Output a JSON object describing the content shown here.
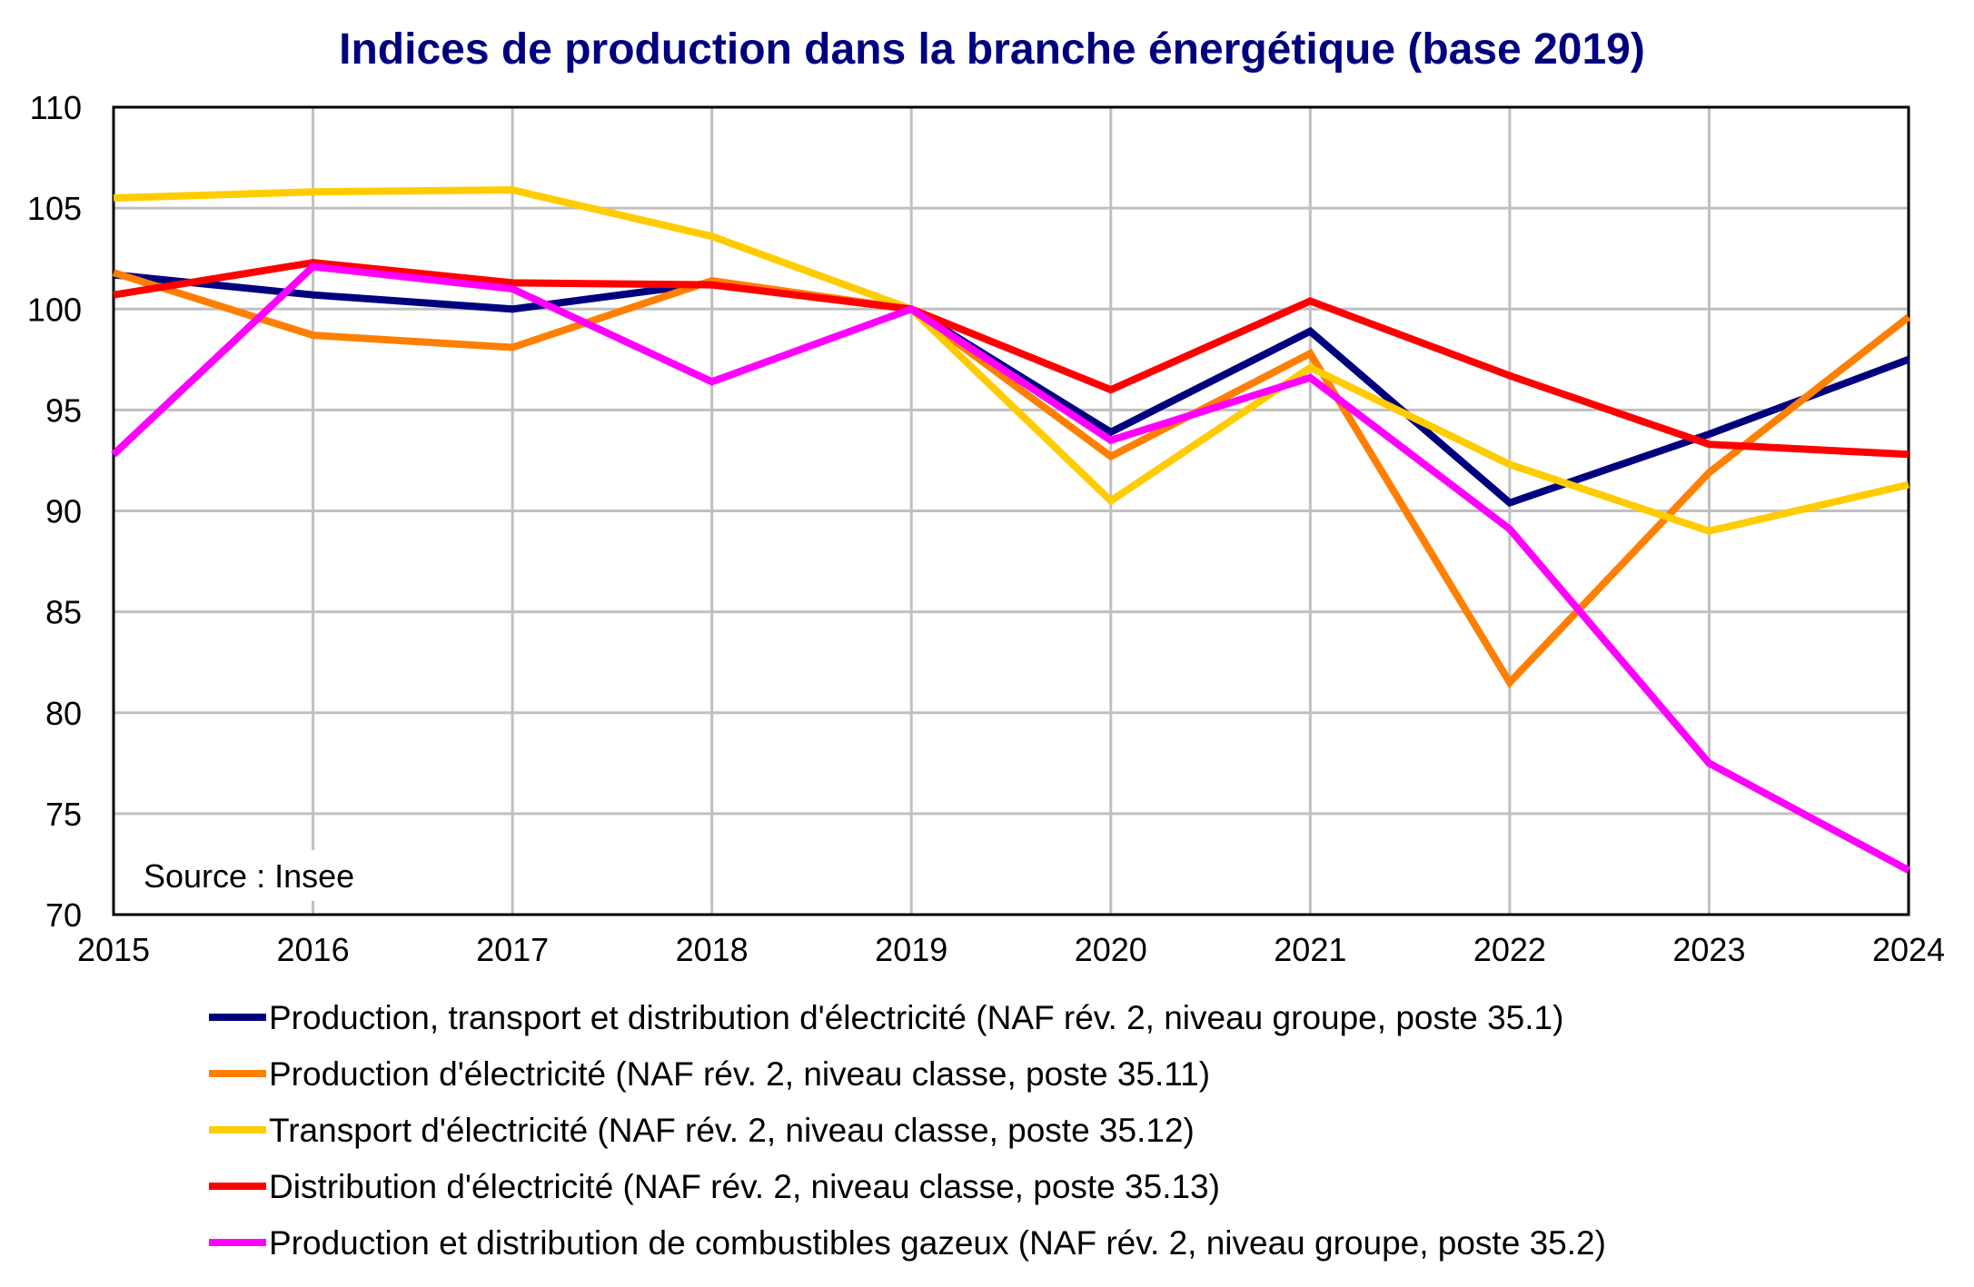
{
  "chart_data": {
    "type": "line",
    "title": "Indices de production dans la branche énergétique (base 2019)",
    "xlabel": "",
    "ylabel": "",
    "x": [
      "2015",
      "2016",
      "2017",
      "2018",
      "2019",
      "2020",
      "2021",
      "2022",
      "2023",
      "2024"
    ],
    "ylim": [
      70,
      110
    ],
    "yticks": [
      "70",
      "75",
      "80",
      "85",
      "90",
      "95",
      "100",
      "105",
      "110"
    ],
    "grid": true,
    "legend_position": "bottom",
    "annotation": "Source : Insee",
    "series": [
      {
        "name": "Production, transport et distribution d'électricité (NAF rév. 2, niveau groupe, poste 35.1)",
        "color": "#00007f",
        "values": [
          101.7,
          100.7,
          100.0,
          101.3,
          100.0,
          93.9,
          98.9,
          90.4,
          93.8,
          97.5
        ]
      },
      {
        "name": "Production d'électricité (NAF rév. 2, niveau classe, poste 35.11)",
        "color": "#ff7f00",
        "values": [
          101.8,
          98.7,
          98.1,
          101.4,
          100.0,
          92.7,
          97.8,
          81.5,
          91.9,
          99.6
        ]
      },
      {
        "name": "Transport d'électricité (NAF rév. 2, niveau classe, poste 35.12)",
        "color": "#ffcc00",
        "values": [
          105.5,
          105.8,
          105.9,
          103.6,
          100.0,
          90.5,
          97.1,
          92.3,
          89.0,
          91.3
        ]
      },
      {
        "name": "Distribution d'électricité (NAF rév. 2, niveau classe, poste 35.13)",
        "color": "#ff0000",
        "values": [
          100.7,
          102.3,
          101.3,
          101.2,
          100.0,
          96.0,
          100.4,
          96.7,
          93.3,
          92.8
        ]
      },
      {
        "name": "Production et distribution de combustibles gazeux (NAF rév. 2, niveau groupe, poste 35.2)",
        "color": "#ff00ff",
        "values": [
          92.8,
          102.1,
          101.0,
          96.4,
          100.0,
          93.5,
          96.6,
          89.1,
          77.5,
          72.2
        ]
      }
    ]
  }
}
